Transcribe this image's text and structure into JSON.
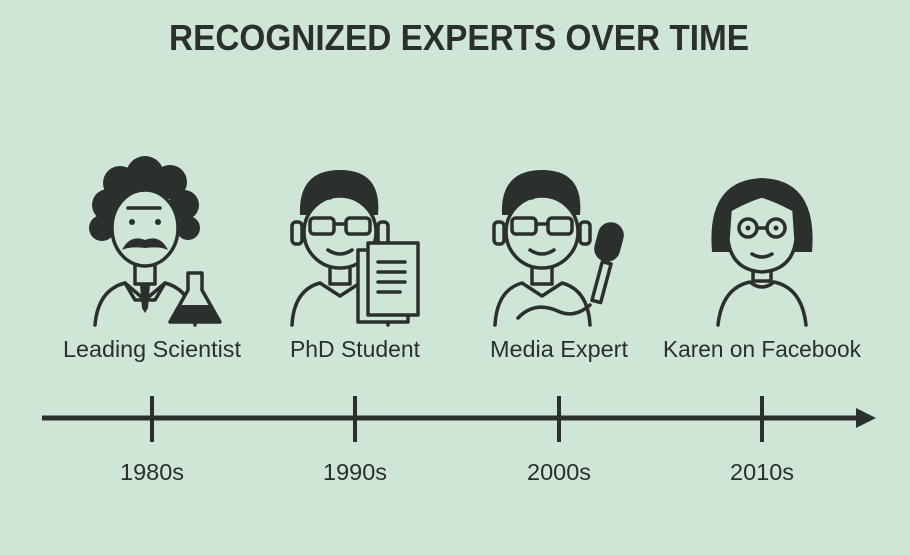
{
  "title": "RECOGNIZED EXPERTS OVER TIME",
  "timeline": [
    {
      "label": "Leading Scientist",
      "period": "1980s"
    },
    {
      "label": "PhD Student",
      "period": "1990s"
    },
    {
      "label": "Media Expert",
      "period": "2000s"
    },
    {
      "label": "Karen on Facebook",
      "period": "2010s"
    }
  ]
}
